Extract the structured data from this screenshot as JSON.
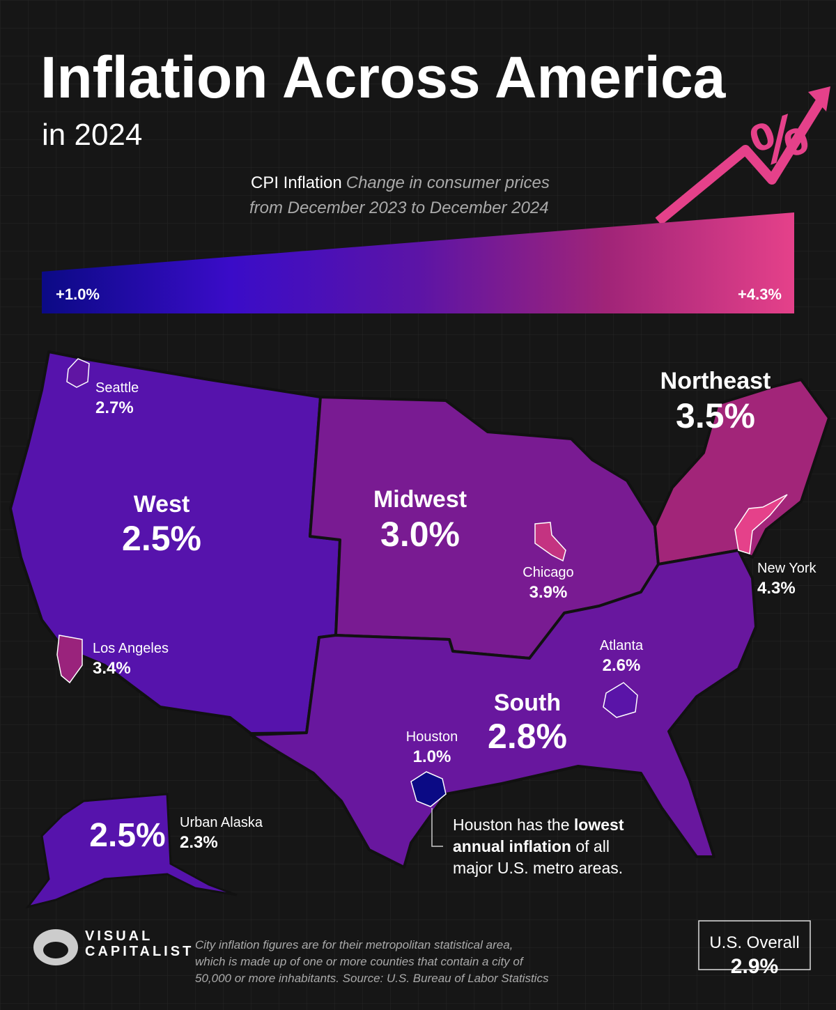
{
  "header": {
    "title": "Inflation Across America",
    "subtitle": "in 2024",
    "legend_title": "CPI Inflation",
    "legend_subtitle_1": "Change in consumer prices",
    "legend_subtitle_2": "from December 2023 to December 2024"
  },
  "scale": {
    "min": {
      "value": 1.0,
      "label": "+1.0%"
    },
    "max": {
      "value": 4.3,
      "label": "+4.3%"
    },
    "colors": [
      "#0b0a85",
      "#3a0cc8",
      "#5c14a6",
      "#a02478",
      "#e5418a"
    ]
  },
  "regions": [
    {
      "name": "West",
      "value": 2.5,
      "value_label": "2.5%"
    },
    {
      "name": "Midwest",
      "value": 3.0,
      "value_label": "3.0%"
    },
    {
      "name": "Northeast",
      "value": 3.5,
      "value_label": "3.5%"
    },
    {
      "name": "South",
      "value": 2.8,
      "value_label": "2.8%"
    }
  ],
  "cities": [
    {
      "name": "Seattle",
      "value": 2.7,
      "value_label": "2.7%"
    },
    {
      "name": "Los Angeles",
      "value": 3.4,
      "value_label": "3.4%"
    },
    {
      "name": "Chicago",
      "value": 3.9,
      "value_label": "3.9%"
    },
    {
      "name": "New York",
      "value": 4.3,
      "value_label": "4.3%"
    },
    {
      "name": "Atlanta",
      "value": 2.6,
      "value_label": "2.6%"
    },
    {
      "name": "Houston",
      "value": 1.0,
      "value_label": "1.0%"
    },
    {
      "name": "Urban Alaska",
      "value": 2.3,
      "value_label": "2.3%"
    }
  ],
  "annotation": {
    "lines": [
      [
        {
          "text": "Houston has the ",
          "bold": false
        },
        {
          "text": "lowest",
          "bold": true
        }
      ],
      [
        {
          "text": "annual inflation",
          "bold": true
        },
        {
          "text": " of all",
          "bold": false
        }
      ],
      [
        {
          "text": "major U.S. metro areas.",
          "bold": false
        }
      ]
    ]
  },
  "overall": {
    "name": "U.S. Overall",
    "value": 2.9,
    "value_label": "2.9%"
  },
  "footer": {
    "brand_1": "VISUAL",
    "brand_2": "CAPITALIST",
    "note": [
      "City inflation figures are for their metropolitan statistical area,",
      "which is made up of one or more counties that contain a city of",
      "50,000 or more inhabitants. Source: U.S. Bureau of Labor Statistics"
    ]
  }
}
